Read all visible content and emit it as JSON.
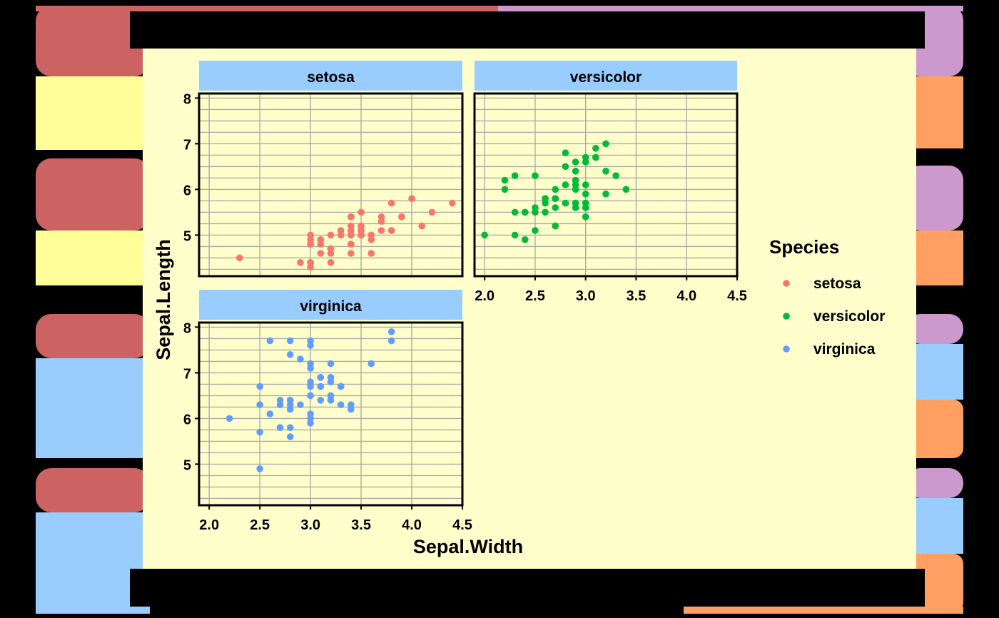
{
  "page": {
    "bg_color": "#000000",
    "panel_bg": "#FFFFCC",
    "strip_bg": "#99CCFF",
    "grid_color": "#AAAAAA",
    "decor_colors": [
      "#CD6262",
      "#FFFF99",
      "#CC99CC",
      "#FFA062",
      "#99CCFF"
    ]
  },
  "chart_data": {
    "type": "scatter",
    "title": "",
    "xlabel": "Sepal.Width",
    "ylabel": "Sepal.Length",
    "xlim": [
      1.9,
      4.5
    ],
    "ylim": [
      4.1,
      8.1
    ],
    "x_ticks": [
      "2.0",
      "2.5",
      "3.0",
      "3.5",
      "4.0",
      "4.5"
    ],
    "y_ticks": [
      "5",
      "6",
      "7",
      "8"
    ],
    "grid": true,
    "facet_by": "Species",
    "legend": {
      "title": "Species",
      "placement": "right",
      "items": [
        {
          "label": "setosa",
          "color": "#F8766D"
        },
        {
          "label": "versicolor",
          "color": "#00BA38"
        },
        {
          "label": "virginica",
          "color": "#619CFF"
        }
      ]
    },
    "series": [
      {
        "name": "setosa",
        "color": "#F8766D",
        "points": [
          [
            3.5,
            5.1
          ],
          [
            3.0,
            4.9
          ],
          [
            3.2,
            4.7
          ],
          [
            3.1,
            4.6
          ],
          [
            3.6,
            5.0
          ],
          [
            3.9,
            5.4
          ],
          [
            3.4,
            4.6
          ],
          [
            3.4,
            5.0
          ],
          [
            2.9,
            4.4
          ],
          [
            3.1,
            4.9
          ],
          [
            3.7,
            5.4
          ],
          [
            3.4,
            4.8
          ],
          [
            3.0,
            4.8
          ],
          [
            3.0,
            4.3
          ],
          [
            4.0,
            5.8
          ],
          [
            4.4,
            5.7
          ],
          [
            3.9,
            5.4
          ],
          [
            3.5,
            5.1
          ],
          [
            3.8,
            5.7
          ],
          [
            3.8,
            5.1
          ],
          [
            3.4,
            5.4
          ],
          [
            3.7,
            5.1
          ],
          [
            3.6,
            4.6
          ],
          [
            3.3,
            5.1
          ],
          [
            3.4,
            4.8
          ],
          [
            3.0,
            5.0
          ],
          [
            3.4,
            5.0
          ],
          [
            3.5,
            5.2
          ],
          [
            3.4,
            5.2
          ],
          [
            3.2,
            4.7
          ],
          [
            3.1,
            4.8
          ],
          [
            3.4,
            5.4
          ],
          [
            4.1,
            5.2
          ],
          [
            4.2,
            5.5
          ],
          [
            3.1,
            4.9
          ],
          [
            3.2,
            5.0
          ],
          [
            3.5,
            5.5
          ],
          [
            3.6,
            4.9
          ],
          [
            3.0,
            4.4
          ],
          [
            3.4,
            5.1
          ],
          [
            3.5,
            5.0
          ],
          [
            2.3,
            4.5
          ],
          [
            3.2,
            4.4
          ],
          [
            3.5,
            5.0
          ],
          [
            3.8,
            5.1
          ],
          [
            3.0,
            4.8
          ],
          [
            3.8,
            5.1
          ],
          [
            3.2,
            4.6
          ],
          [
            3.7,
            5.3
          ],
          [
            3.3,
            5.0
          ]
        ]
      },
      {
        "name": "versicolor",
        "color": "#00BA38",
        "points": [
          [
            3.2,
            7.0
          ],
          [
            3.2,
            6.4
          ],
          [
            3.1,
            6.9
          ],
          [
            2.3,
            5.5
          ],
          [
            2.8,
            6.5
          ],
          [
            2.8,
            5.7
          ],
          [
            3.3,
            6.3
          ],
          [
            2.4,
            4.9
          ],
          [
            2.9,
            6.6
          ],
          [
            2.7,
            5.2
          ],
          [
            2.0,
            5.0
          ],
          [
            3.0,
            5.9
          ],
          [
            2.2,
            6.0
          ],
          [
            2.9,
            6.1
          ],
          [
            2.9,
            5.6
          ],
          [
            3.1,
            6.7
          ],
          [
            3.0,
            5.6
          ],
          [
            2.7,
            5.8
          ],
          [
            2.2,
            6.2
          ],
          [
            2.5,
            5.6
          ],
          [
            3.2,
            5.9
          ],
          [
            2.8,
            6.1
          ],
          [
            2.5,
            6.3
          ],
          [
            2.8,
            6.1
          ],
          [
            2.9,
            6.4
          ],
          [
            3.0,
            6.6
          ],
          [
            2.8,
            6.8
          ],
          [
            3.0,
            6.7
          ],
          [
            2.9,
            6.0
          ],
          [
            2.6,
            5.7
          ],
          [
            2.4,
            5.5
          ],
          [
            2.4,
            5.5
          ],
          [
            2.7,
            5.8
          ],
          [
            2.7,
            6.0
          ],
          [
            3.0,
            5.4
          ],
          [
            3.4,
            6.0
          ],
          [
            3.1,
            6.7
          ],
          [
            2.3,
            6.3
          ],
          [
            3.0,
            5.6
          ],
          [
            2.5,
            5.5
          ],
          [
            2.6,
            5.5
          ],
          [
            3.0,
            6.1
          ],
          [
            2.6,
            5.8
          ],
          [
            2.3,
            5.0
          ],
          [
            2.7,
            5.6
          ],
          [
            3.0,
            5.7
          ],
          [
            2.9,
            5.7
          ],
          [
            2.9,
            6.2
          ],
          [
            2.5,
            5.1
          ],
          [
            2.8,
            5.7
          ]
        ]
      },
      {
        "name": "virginica",
        "color": "#619CFF",
        "points": [
          [
            3.3,
            6.3
          ],
          [
            2.7,
            5.8
          ],
          [
            3.0,
            7.1
          ],
          [
            2.9,
            6.3
          ],
          [
            3.0,
            6.5
          ],
          [
            3.0,
            7.6
          ],
          [
            2.5,
            4.9
          ],
          [
            2.9,
            7.3
          ],
          [
            2.5,
            6.7
          ],
          [
            3.6,
            7.2
          ],
          [
            3.2,
            6.5
          ],
          [
            2.7,
            6.4
          ],
          [
            3.0,
            6.8
          ],
          [
            2.5,
            5.7
          ],
          [
            2.8,
            5.8
          ],
          [
            3.2,
            6.4
          ],
          [
            3.0,
            6.5
          ],
          [
            3.8,
            7.7
          ],
          [
            2.6,
            7.7
          ],
          [
            2.2,
            6.0
          ],
          [
            3.2,
            6.9
          ],
          [
            2.8,
            5.6
          ],
          [
            2.8,
            7.7
          ],
          [
            2.7,
            6.3
          ],
          [
            3.3,
            6.7
          ],
          [
            3.2,
            7.2
          ],
          [
            2.8,
            6.2
          ],
          [
            3.0,
            6.1
          ],
          [
            2.8,
            6.4
          ],
          [
            3.0,
            7.2
          ],
          [
            2.8,
            7.4
          ],
          [
            3.8,
            7.9
          ],
          [
            2.8,
            6.4
          ],
          [
            2.8,
            6.3
          ],
          [
            2.6,
            6.1
          ],
          [
            3.0,
            7.7
          ],
          [
            3.4,
            6.3
          ],
          [
            3.1,
            6.4
          ],
          [
            3.0,
            6.0
          ],
          [
            3.1,
            6.9
          ],
          [
            3.1,
            6.7
          ],
          [
            3.1,
            6.9
          ],
          [
            2.7,
            5.8
          ],
          [
            3.2,
            6.8
          ],
          [
            3.3,
            6.7
          ],
          [
            3.0,
            6.7
          ],
          [
            2.5,
            6.3
          ],
          [
            3.0,
            6.5
          ],
          [
            3.4,
            6.2
          ],
          [
            3.0,
            5.9
          ]
        ]
      }
    ]
  }
}
